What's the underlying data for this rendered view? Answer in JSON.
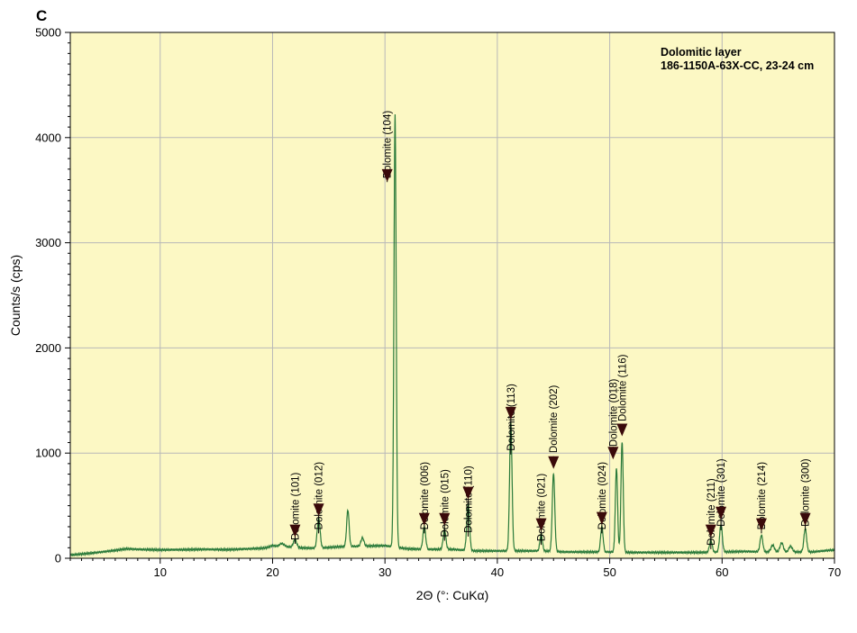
{
  "panel_label": "C",
  "chart_data": {
    "type": "line",
    "title": "",
    "xlabel": "2Θ (°: CuKα)",
    "ylabel": "Counts/s (cps)",
    "xlim": [
      2,
      70
    ],
    "ylim": [
      0,
      5000
    ],
    "xticks": [
      10,
      20,
      30,
      40,
      50,
      60,
      70
    ],
    "yticks": [
      0,
      1000,
      2000,
      3000,
      4000,
      5000
    ],
    "grid": true,
    "background_color": "#fcf8c4",
    "line_color": "#2a7a3a",
    "annotation_color": "#3a0a0a",
    "sample_label": [
      "Dolomitic layer",
      "186-1150A-63X-CC, 23-24 cm"
    ],
    "baseline": [
      [
        2,
        30
      ],
      [
        4,
        50
      ],
      [
        6,
        75
      ],
      [
        7,
        90
      ],
      [
        8,
        85
      ],
      [
        10,
        80
      ],
      [
        12,
        82
      ],
      [
        14,
        85
      ],
      [
        16,
        82
      ],
      [
        18,
        90
      ],
      [
        19,
        95
      ],
      [
        20,
        105
      ],
      [
        21,
        115
      ],
      [
        22,
        100
      ],
      [
        24,
        95
      ],
      [
        26,
        110
      ],
      [
        28,
        115
      ],
      [
        30,
        120
      ],
      [
        32,
        90
      ],
      [
        34,
        85
      ],
      [
        36,
        85
      ],
      [
        38,
        70
      ],
      [
        40,
        70
      ],
      [
        42,
        70
      ],
      [
        44,
        70
      ],
      [
        46,
        60
      ],
      [
        48,
        60
      ],
      [
        50,
        60
      ],
      [
        52,
        55
      ],
      [
        54,
        55
      ],
      [
        56,
        55
      ],
      [
        58,
        55
      ],
      [
        60,
        60
      ],
      [
        62,
        65
      ],
      [
        64,
        60
      ],
      [
        66,
        60
      ],
      [
        68,
        60
      ],
      [
        70,
        80
      ]
    ],
    "peaks": [
      {
        "x": 20.0,
        "y": 120,
        "w": 0.25
      },
      {
        "x": 20.8,
        "y": 140,
        "w": 0.2
      },
      {
        "x": 22.0,
        "y": 175,
        "w": 0.15
      },
      {
        "x": 24.1,
        "y": 380,
        "w": 0.13
      },
      {
        "x": 26.7,
        "y": 460,
        "w": 0.11
      },
      {
        "x": 28.0,
        "y": 195,
        "w": 0.13
      },
      {
        "x": 30.9,
        "y": 4220,
        "w": 0.1
      },
      {
        "x": 33.5,
        "y": 300,
        "w": 0.12
      },
      {
        "x": 35.3,
        "y": 270,
        "w": 0.12
      },
      {
        "x": 37.4,
        "y": 530,
        "w": 0.12
      },
      {
        "x": 41.2,
        "y": 1290,
        "w": 0.11
      },
      {
        "x": 43.9,
        "y": 230,
        "w": 0.11
      },
      {
        "x": 45.0,
        "y": 810,
        "w": 0.11
      },
      {
        "x": 49.3,
        "y": 300,
        "w": 0.11
      },
      {
        "x": 50.6,
        "y": 860,
        "w": 0.1
      },
      {
        "x": 51.1,
        "y": 1110,
        "w": 0.1
      },
      {
        "x": 59.0,
        "y": 170,
        "w": 0.12
      },
      {
        "x": 59.9,
        "y": 320,
        "w": 0.12
      },
      {
        "x": 63.5,
        "y": 220,
        "w": 0.12
      },
      {
        "x": 64.5,
        "y": 125,
        "w": 0.15
      },
      {
        "x": 65.3,
        "y": 145,
        "w": 0.15
      },
      {
        "x": 66.1,
        "y": 115,
        "w": 0.15
      },
      {
        "x": 67.4,
        "y": 280,
        "w": 0.12
      }
    ],
    "annotations": [
      {
        "label": "Dolomite (101)",
        "x": 22.0,
        "text_top": 1010,
        "arrow_tip": 200
      },
      {
        "label": "Dolomite (012)",
        "x": 24.1,
        "text_top": 1110,
        "arrow_tip": 400
      },
      {
        "label": "Dolomite (104)",
        "x": 30.2,
        "text_top": 4450,
        "arrow_tip": 3580
      },
      {
        "label": "Dolomite (006)",
        "x": 33.5,
        "text_top": 1110,
        "arrow_tip": 310
      },
      {
        "label": "Dolomite (015)",
        "x": 35.3,
        "text_top": 1040,
        "arrow_tip": 310
      },
      {
        "label": "Dolomite (110)",
        "x": 37.4,
        "text_top": 1080,
        "arrow_tip": 560
      },
      {
        "label": "Dolomite (113)",
        "x": 41.2,
        "text_top": 1860,
        "arrow_tip": 1320
      },
      {
        "label": "Dolomite (021)",
        "x": 43.9,
        "text_top": 1000,
        "arrow_tip": 260
      },
      {
        "label": "Dolomite (202)",
        "x": 45.0,
        "text_top": 1840,
        "arrow_tip": 850
      },
      {
        "label": "Dolomite (024)",
        "x": 49.3,
        "text_top": 1110,
        "arrow_tip": 320
      },
      {
        "label": "Dolomite (018)",
        "x": 50.3,
        "text_top": 1900,
        "arrow_tip": 940
      },
      {
        "label": "Dolomite (116)",
        "x": 51.1,
        "text_top": 2140,
        "arrow_tip": 1160
      },
      {
        "label": "Dolomite (211)",
        "x": 59.0,
        "text_top": 960,
        "arrow_tip": 200
      },
      {
        "label": "Dolomite (301)",
        "x": 59.9,
        "text_top": 1140,
        "arrow_tip": 370
      },
      {
        "label": "Dolomite (214)",
        "x": 63.5,
        "text_top": 1110,
        "arrow_tip": 260
      },
      {
        "label": "Dolomite (300)",
        "x": 67.4,
        "text_top": 1140,
        "arrow_tip": 310
      }
    ]
  }
}
